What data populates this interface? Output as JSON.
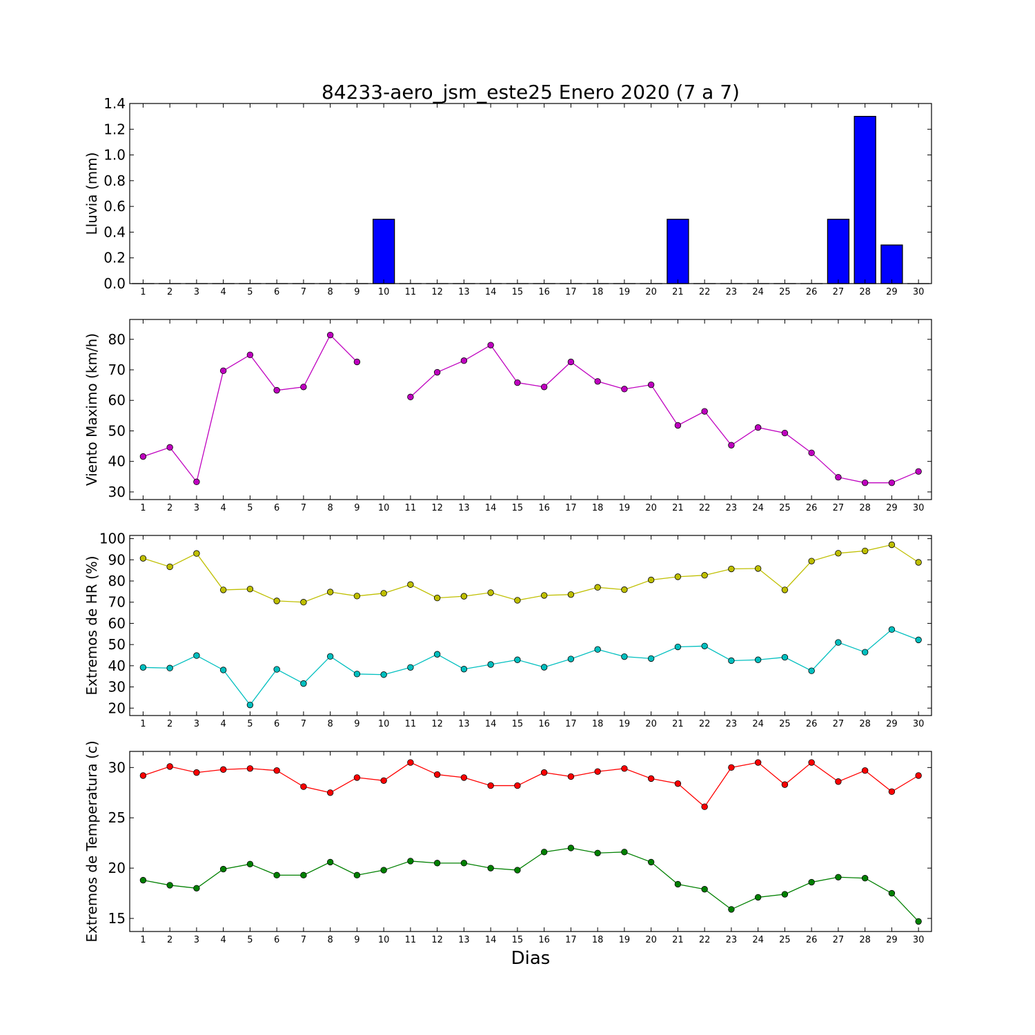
{
  "figure": {
    "title": "84233-aero_jsm_este25 Enero 2020  (7 a 7)",
    "xlabel": "Dias"
  },
  "chart_data": [
    {
      "type": "bar",
      "ylabel": "Lluvia (mm)",
      "ylim": [
        0,
        1.4
      ],
      "yticks": [
        0.0,
        0.2,
        0.4,
        0.6,
        0.8,
        1.0,
        1.2,
        1.4
      ],
      "ytick_labels": [
        "0.0",
        "0.2",
        "0.4",
        "0.6",
        "0.8",
        "1.0",
        "1.2",
        "1.4"
      ],
      "categories": [
        1,
        2,
        3,
        4,
        5,
        6,
        7,
        8,
        9,
        10,
        11,
        12,
        13,
        14,
        15,
        16,
        17,
        18,
        19,
        20,
        21,
        22,
        23,
        24,
        25,
        26,
        27,
        28,
        29,
        30
      ],
      "series": [
        {
          "color": "#0000ff",
          "values": [
            0,
            0,
            0,
            0,
            0,
            0,
            0,
            0,
            0,
            0.5,
            0,
            0,
            0,
            0,
            0,
            0,
            0,
            0,
            0,
            0,
            0.5,
            0,
            0,
            0,
            0,
            0,
            0.5,
            1.3,
            0.3,
            0
          ]
        }
      ]
    },
    {
      "type": "line",
      "ylabel": "Viento Maximo (km/h)",
      "ylim": [
        27.5,
        86.5
      ],
      "yticks": [
        30,
        40,
        50,
        60,
        70,
        80
      ],
      "categories": [
        1,
        2,
        3,
        4,
        5,
        6,
        7,
        8,
        9,
        10,
        11,
        12,
        13,
        14,
        15,
        16,
        17,
        18,
        19,
        20,
        21,
        22,
        23,
        24,
        25,
        26,
        27,
        28,
        29,
        30
      ],
      "series": [
        {
          "color": "#bf00bf",
          "values": [
            41.6,
            44.6,
            33.3,
            69.7,
            74.9,
            63.3,
            64.4,
            81.4,
            72.6,
            null,
            61.1,
            69.2,
            73.0,
            78.1,
            65.8,
            64.4,
            72.6,
            66.2,
            63.7,
            65.1,
            51.8,
            56.4,
            45.3,
            51.1,
            49.3,
            42.8,
            34.8,
            33.0,
            33.0,
            36.7
          ]
        }
      ]
    },
    {
      "type": "line",
      "ylabel": "Extremos de HR (%)",
      "ylim": [
        16.5,
        101.5
      ],
      "yticks": [
        20,
        30,
        40,
        50,
        60,
        70,
        80,
        90,
        100
      ],
      "categories": [
        1,
        2,
        3,
        4,
        5,
        6,
        7,
        8,
        9,
        10,
        11,
        12,
        13,
        14,
        15,
        16,
        17,
        18,
        19,
        20,
        21,
        22,
        23,
        24,
        25,
        26,
        27,
        28,
        29,
        30
      ],
      "series": [
        {
          "color": "#bfbf00",
          "values": [
            90.7,
            86.7,
            93.0,
            75.8,
            76.2,
            70.6,
            70.0,
            74.8,
            72.9,
            74.2,
            78.3,
            72.0,
            72.8,
            74.5,
            70.9,
            73.2,
            73.6,
            77.0,
            75.9,
            80.5,
            82.0,
            82.7,
            85.7,
            85.9,
            75.8,
            89.4,
            93.1,
            94.2,
            97.1,
            88.8
          ]
        },
        {
          "color": "#00bfbf",
          "values": [
            39.2,
            38.9,
            44.8,
            38.0,
            21.5,
            38.3,
            31.6,
            44.4,
            36.1,
            35.8,
            39.2,
            45.4,
            38.4,
            40.6,
            42.8,
            39.3,
            43.2,
            47.7,
            44.3,
            43.4,
            48.9,
            49.3,
            42.4,
            42.8,
            44.0,
            37.6,
            51.0,
            46.4,
            57.1,
            52.2
          ]
        }
      ]
    },
    {
      "type": "line",
      "ylabel": "Extremos de Temperatura (c)",
      "ylim": [
        13.7,
        31.6
      ],
      "yticks": [
        15,
        20,
        25,
        30
      ],
      "categories": [
        1,
        2,
        3,
        4,
        5,
        6,
        7,
        8,
        9,
        10,
        11,
        12,
        13,
        14,
        15,
        16,
        17,
        18,
        19,
        20,
        21,
        22,
        23,
        24,
        25,
        26,
        27,
        28,
        29,
        30
      ],
      "series": [
        {
          "color": "#ff0000",
          "values": [
            29.2,
            30.1,
            29.5,
            29.8,
            29.9,
            29.7,
            28.1,
            27.5,
            29.0,
            28.7,
            30.5,
            29.3,
            29.0,
            28.2,
            28.2,
            29.5,
            29.1,
            29.6,
            29.9,
            28.9,
            28.4,
            26.1,
            30.0,
            30.5,
            28.3,
            30.5,
            28.6,
            29.7,
            27.6,
            29.2
          ]
        },
        {
          "color": "#008000",
          "values": [
            18.8,
            18.3,
            18.0,
            19.9,
            20.4,
            19.3,
            19.3,
            20.6,
            19.3,
            19.8,
            20.7,
            20.5,
            20.5,
            20.0,
            19.8,
            21.6,
            22.0,
            21.5,
            21.6,
            20.6,
            18.4,
            17.9,
            15.9,
            17.1,
            17.4,
            18.6,
            19.1,
            19.0,
            17.5,
            14.7
          ]
        }
      ]
    }
  ]
}
